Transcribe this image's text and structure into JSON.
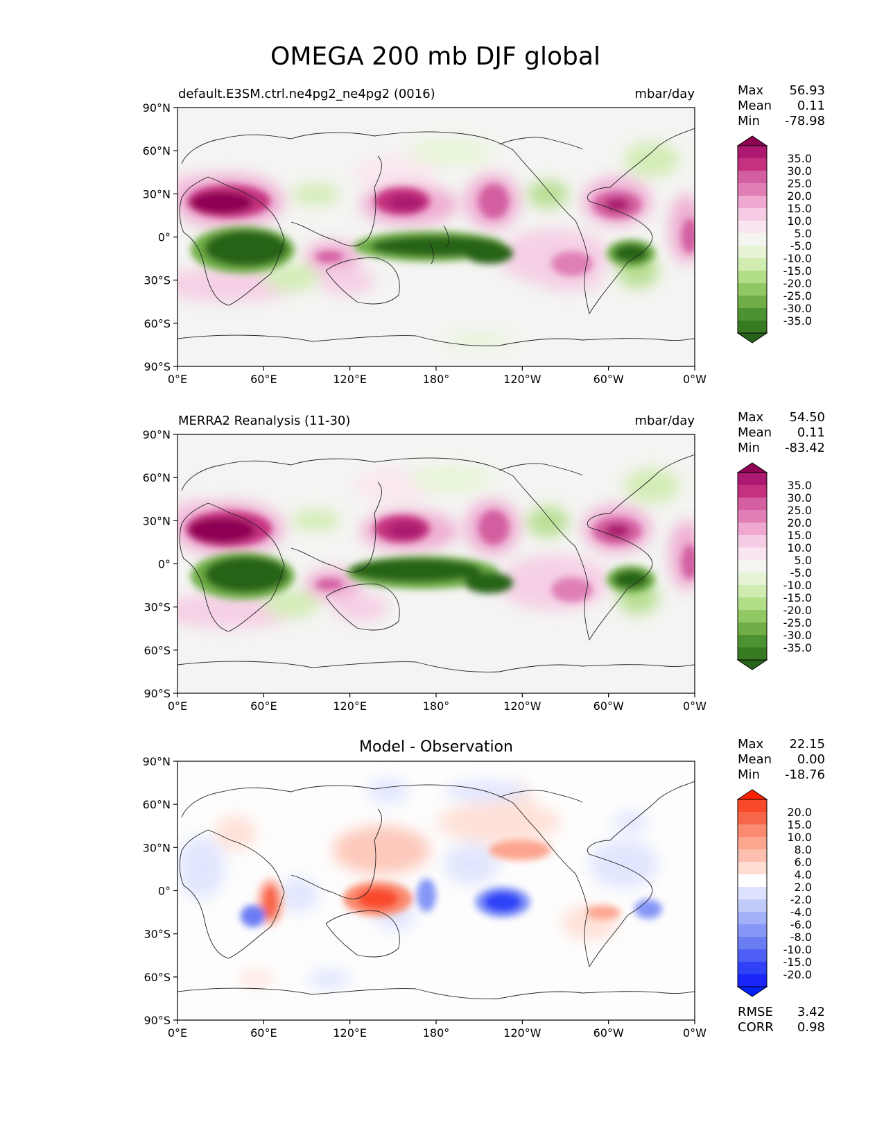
{
  "figure": {
    "title": "OMEGA 200 mb DJF global"
  },
  "lat_ticks": [
    "90°N",
    "60°N",
    "30°N",
    "0°",
    "30°S",
    "60°S",
    "90°S"
  ],
  "lon_ticks": [
    "0°E",
    "60°E",
    "120°E",
    "180°",
    "120°W",
    "60°W",
    "0°W"
  ],
  "panels": [
    {
      "id": "test",
      "left_title": "default.E3SM.ctrl.ne4pg2_ne4pg2 (0016)",
      "center_title": "",
      "units": "mbar/day",
      "stats": [
        {
          "label": "Max",
          "value": "56.93"
        },
        {
          "label": "Mean",
          "value": "0.11"
        },
        {
          "label": "Min",
          "value": "-78.98"
        }
      ],
      "colorbar": {
        "labels": [
          "35.0",
          "30.0",
          "25.0",
          "20.0",
          "15.0",
          "10.0",
          "5.0",
          "-5.0",
          "-10.0",
          "-15.0",
          "-20.0",
          "-25.0",
          "-30.0",
          "-35.0"
        ],
        "colors": [
          "#8e0152",
          "#ab1a70",
          "#c5307f",
          "#d35ea0",
          "#e07fb6",
          "#efa8d0",
          "#f6cce4",
          "#fae6f0",
          "#f4f4f0",
          "#e6f4d5",
          "#d0ecb0",
          "#b2dd89",
          "#91c864",
          "#6fae47",
          "#4d9231",
          "#387a22",
          "#276419"
        ],
        "top_color": "#8e0152",
        "bottom_color": "#276419"
      },
      "background": "#f4f4f2"
    },
    {
      "id": "ref",
      "left_title": "MERRA2 Reanalysis (11-30)",
      "center_title": "",
      "units": "mbar/day",
      "stats": [
        {
          "label": "Max",
          "value": "54.50"
        },
        {
          "label": "Mean",
          "value": "0.11"
        },
        {
          "label": "Min",
          "value": "-83.42"
        }
      ],
      "colorbar": {
        "labels": [
          "35.0",
          "30.0",
          "25.0",
          "20.0",
          "15.0",
          "10.0",
          "5.0",
          "-5.0",
          "-10.0",
          "-15.0",
          "-20.0",
          "-25.0",
          "-30.0",
          "-35.0"
        ],
        "colors": [
          "#8e0152",
          "#ab1a70",
          "#c5307f",
          "#d35ea0",
          "#e07fb6",
          "#efa8d0",
          "#f6cce4",
          "#fae6f0",
          "#f4f4f0",
          "#e6f4d5",
          "#d0ecb0",
          "#b2dd89",
          "#91c864",
          "#6fae47",
          "#4d9231",
          "#387a22",
          "#276419"
        ],
        "top_color": "#8e0152",
        "bottom_color": "#276419"
      },
      "background": "#f4f4f2"
    },
    {
      "id": "diff",
      "left_title": "",
      "center_title": "Model - Observation",
      "units": "",
      "stats": [
        {
          "label": "Max",
          "value": "22.15"
        },
        {
          "label": "Mean",
          "value": "0.00"
        },
        {
          "label": "Min",
          "value": "-18.76"
        }
      ],
      "bottom_stats": [
        {
          "label": "RMSE",
          "value": "3.42"
        },
        {
          "label": "CORR",
          "value": "0.98"
        }
      ],
      "colorbar": {
        "labels": [
          "20.0",
          "15.0",
          "10.0",
          "8.0",
          "6.0",
          "4.0",
          "2.0",
          "-2.0",
          "-4.0",
          "-6.0",
          "-8.0",
          "-10.0",
          "-15.0",
          "-20.0"
        ],
        "colors": [
          "#ff2200",
          "#f84a2a",
          "#f8664a",
          "#fa8a70",
          "#fca58f",
          "#fdc0b0",
          "#feddd2",
          "#ffffff",
          "#dde3ff",
          "#c0cbfa",
          "#a3b2f8",
          "#8596f6",
          "#6a7cf4",
          "#4e5ff5",
          "#2f42f7",
          "#1a25fa",
          "#0022ff"
        ],
        "top_color": "#ff2200",
        "bottom_color": "#0022ff"
      },
      "background": "#fdfdfd"
    }
  ]
}
